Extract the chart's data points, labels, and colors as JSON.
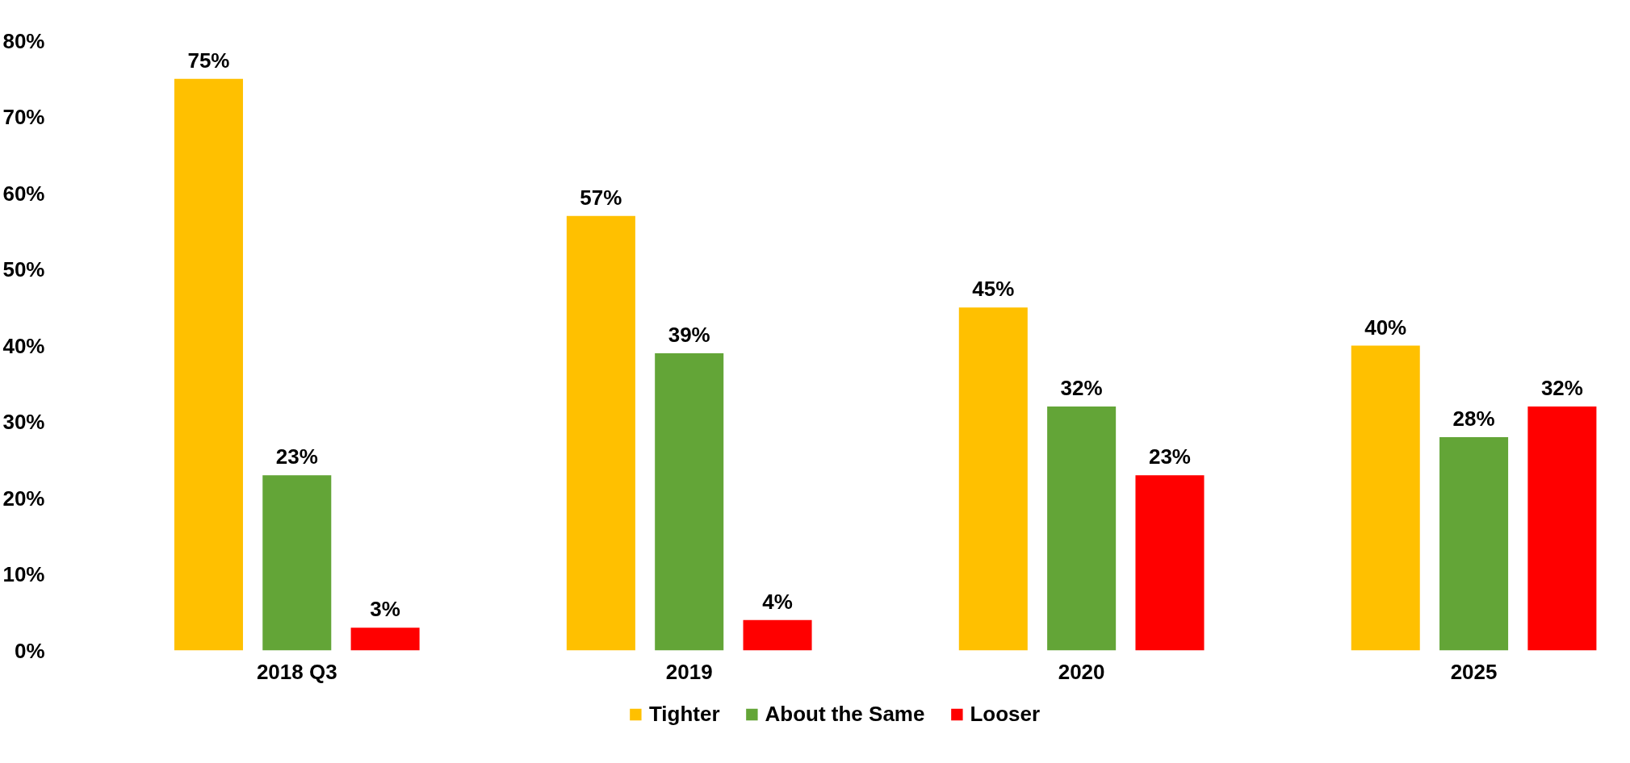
{
  "chart_data": {
    "type": "bar",
    "categories": [
      "2018 Q3",
      "2019",
      "2020",
      "2025"
    ],
    "series": [
      {
        "name": "Tighter",
        "color": "#ffc000",
        "values": [
          75,
          57,
          45,
          40
        ],
        "value_labels": [
          "75%",
          "57%",
          "45%",
          "40%"
        ]
      },
      {
        "name": "About the Same",
        "color": "#63a537",
        "values": [
          23,
          39,
          32,
          28
        ],
        "value_labels": [
          "23%",
          "39%",
          "32%",
          "28%"
        ]
      },
      {
        "name": "Looser",
        "color": "#ff0000",
        "values": [
          3,
          4,
          23,
          32
        ],
        "value_labels": [
          "3%",
          "4%",
          "23%",
          "32%"
        ]
      }
    ],
    "ylim": [
      0,
      80
    ],
    "yticks": [
      {
        "value": 0,
        "label": "0%"
      },
      {
        "value": 10,
        "label": "10%"
      },
      {
        "value": 20,
        "label": "20%"
      },
      {
        "value": 30,
        "label": "30%"
      },
      {
        "value": 40,
        "label": "40%"
      },
      {
        "value": 50,
        "label": "50%"
      },
      {
        "value": 60,
        "label": "60%"
      },
      {
        "value": 70,
        "label": "70%"
      },
      {
        "value": 80,
        "label": "80%"
      }
    ],
    "grid": false,
    "legend": "bottom"
  }
}
